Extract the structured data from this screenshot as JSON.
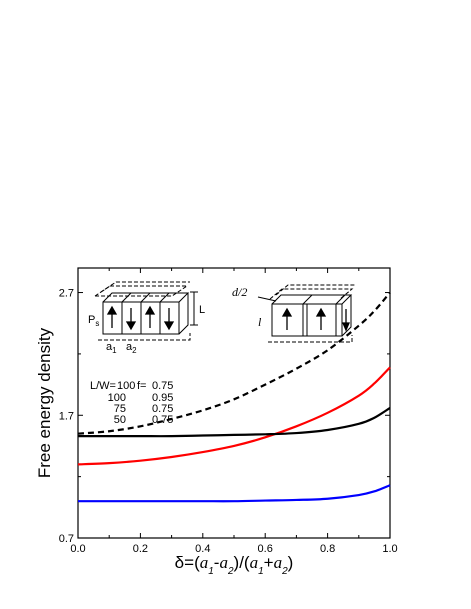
{
  "chart_data": {
    "type": "line",
    "xlabel": "δ=(a1-a2)/(a1+a2)",
    "ylabel": "Free energy density",
    "xlim": [
      0,
      1.0
    ],
    "ylim": [
      0.7,
      2.9
    ],
    "xticks": [
      "0.0",
      "0.2",
      "0.4",
      "0.6",
      "0.8",
      "1.0"
    ],
    "yticks": [
      "0.7",
      "1.7",
      "2.7"
    ],
    "x": [
      0,
      0.1,
      0.2,
      0.3,
      0.4,
      0.5,
      0.6,
      0.7,
      0.8,
      0.9,
      0.95,
      1.0
    ],
    "series": [
      {
        "color": "#000000",
        "dash": true,
        "values": [
          1.55,
          1.57,
          1.61,
          1.67,
          1.74,
          1.83,
          1.95,
          2.08,
          2.23,
          2.43,
          2.55,
          2.7
        ]
      },
      {
        "color": "#ff0000",
        "dash": false,
        "values": [
          1.3,
          1.31,
          1.33,
          1.36,
          1.4,
          1.45,
          1.52,
          1.61,
          1.72,
          1.86,
          1.96,
          2.09
        ]
      },
      {
        "color": "#000000",
        "dash": false,
        "values": [
          1.53,
          1.53,
          1.53,
          1.53,
          1.535,
          1.54,
          1.545,
          1.555,
          1.58,
          1.63,
          1.68,
          1.76
        ]
      },
      {
        "color": "#0000ff",
        "dash": false,
        "values": [
          1.0,
          1.0,
          1.0,
          1.0,
          1.0,
          1.0,
          1.005,
          1.01,
          1.02,
          1.05,
          1.08,
          1.13
        ]
      }
    ],
    "legend": {
      "header": [
        "L/W=",
        "100",
        "f=",
        "0.75"
      ],
      "rows": [
        [
          "100",
          "0.95"
        ],
        [
          "75",
          "0.75"
        ],
        [
          "50",
          "0.75"
        ]
      ]
    },
    "annotations": {
      "left_diagram": {
        "ps": "P",
        "ps_sub": "s",
        "l": "L",
        "a1": "a",
        "a1_sub": "1",
        "a2": "a",
        "a2_sub": "2"
      },
      "right_diagram": {
        "d2": "d/2",
        "l": "l"
      }
    }
  }
}
